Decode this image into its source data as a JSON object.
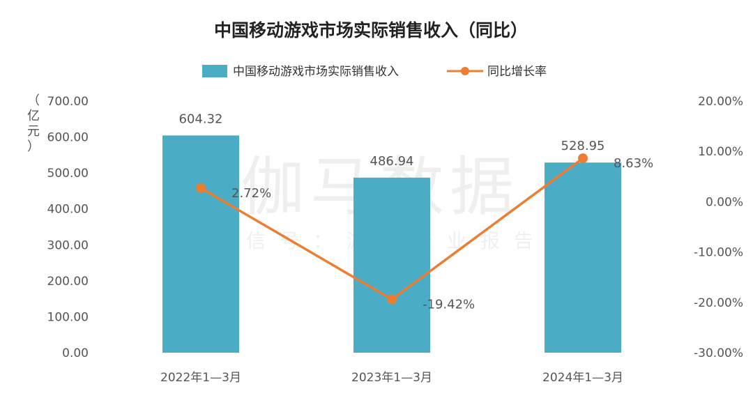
{
  "chart_data": {
    "type": "bar",
    "title": "中国移动游戏市场实际销售收入（同比）",
    "ylabel": "（亿元）",
    "ylabel_chars": [
      "（",
      "亿",
      "元",
      "）"
    ],
    "categories": [
      "2022年1—3月",
      "2023年1—3月",
      "2024年1—3月"
    ],
    "series": [
      {
        "name": "中国移动游戏市场实际销售收入",
        "kind": "bar",
        "axis": "left",
        "color": "#4bacc6",
        "values": [
          604.32,
          486.94,
          528.95
        ],
        "labels": [
          "604.32",
          "486.94",
          "528.95"
        ]
      },
      {
        "name": "同比增长率",
        "kind": "line",
        "axis": "right",
        "color": "#ed7d31",
        "values": [
          2.72,
          -19.42,
          8.63
        ],
        "labels": [
          "2.72%",
          "-19.42%",
          "8.63%"
        ]
      }
    ],
    "ylim": [
      0,
      700
    ],
    "yticks_left": [
      "0.00",
      "100.00",
      "200.00",
      "300.00",
      "400.00",
      "500.00",
      "600.00",
      "700.00"
    ],
    "y2lim": [
      -30,
      20
    ],
    "yticks_right": [
      "-30.00%",
      "-20.00%",
      "-10.00%",
      "0.00%",
      "10.00%",
      "20.00%"
    ],
    "legend_position": "top-center",
    "grid": false
  },
  "watermark": {
    "main": "伽马数据",
    "sub": "微信号：游戏产业报告"
  }
}
